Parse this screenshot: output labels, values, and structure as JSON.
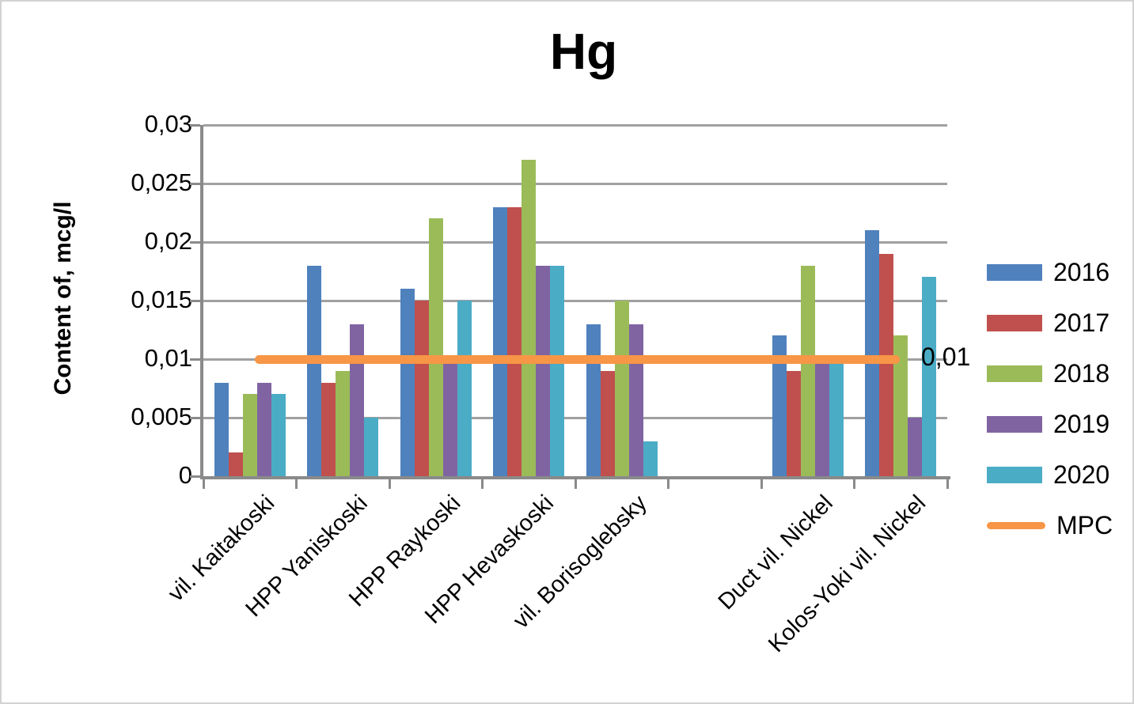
{
  "chart_data": {
    "type": "bar",
    "title": "Hg",
    "ylabel": "Content of,  mcg/l",
    "xlabel": "",
    "categories": [
      "vil. Kaitakoski",
      "HPP Yaniskoski",
      "HPP Raykoski",
      "HPP Hevaskoski",
      "vil. Borisoglebsky",
      "",
      "Duct vil. Nickel",
      "Kolos-Yoki vil. Nickel"
    ],
    "series": [
      {
        "name": "2016",
        "color": "#4F81BD",
        "values": [
          0.008,
          0.018,
          0.016,
          0.023,
          0.013,
          null,
          0.012,
          0.021
        ]
      },
      {
        "name": "2017",
        "color": "#C0504D",
        "values": [
          0.002,
          0.008,
          0.015,
          0.023,
          0.009,
          null,
          0.009,
          0.019
        ]
      },
      {
        "name": "2018",
        "color": "#9BBB59",
        "values": [
          0.007,
          0.009,
          0.022,
          0.027,
          0.015,
          null,
          0.018,
          0.012
        ]
      },
      {
        "name": "2019",
        "color": "#8064A2",
        "values": [
          0.008,
          0.013,
          0.01,
          0.018,
          0.013,
          null,
          0.01,
          0.005
        ]
      },
      {
        "name": "2020",
        "color": "#4BACC6",
        "values": [
          0.007,
          0.005,
          0.015,
          0.018,
          0.003,
          null,
          0.01,
          0.017
        ]
      }
    ],
    "mpc_line": {
      "name": "MPC",
      "value": 0.01,
      "color": "#F79646",
      "label": "0,01"
    },
    "y_tick_labels": [
      "0,03",
      "0,025",
      "0,02",
      "0,015",
      "0,01",
      "0,005",
      "0"
    ],
    "y_tick_values": [
      0.03,
      0.025,
      0.02,
      0.015,
      0.01,
      0.005,
      0
    ],
    "ylim": [
      0,
      0.03
    ],
    "grid": true,
    "legend_position": "right",
    "legend_entries": [
      "2016",
      "2017",
      "2018",
      "2019",
      "2020",
      "MPC"
    ]
  }
}
